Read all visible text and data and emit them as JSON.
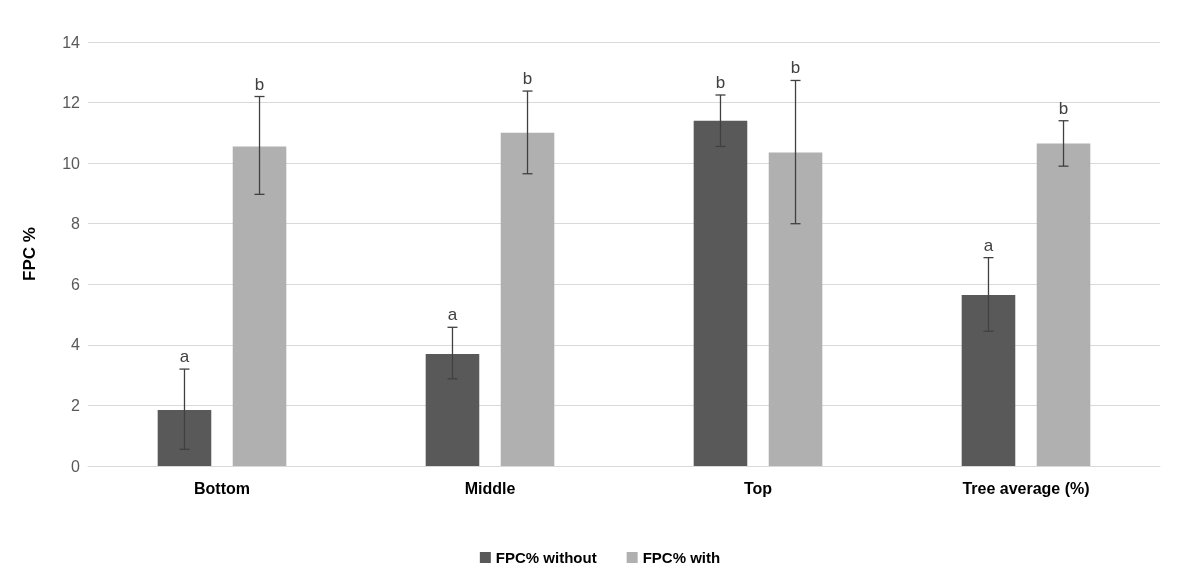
{
  "chart_data": {
    "type": "bar",
    "ylabel": "FPC %",
    "categories": [
      "Bottom",
      "Middle",
      "Top",
      "Tree average (%)"
    ],
    "series": [
      {
        "name": "FPC% without",
        "color": "#595959",
        "values": [
          1.85,
          3.7,
          11.4,
          5.65
        ],
        "errors": [
          [
            0.55,
            3.2
          ],
          [
            2.88,
            4.58
          ],
          [
            10.55,
            12.25
          ],
          [
            4.45,
            6.88
          ]
        ]
      },
      {
        "name": "FPC% with",
        "color": "#b0b0b0",
        "values": [
          10.55,
          11.0,
          10.35,
          10.65
        ],
        "errors": [
          [
            8.97,
            12.2
          ],
          [
            9.65,
            12.38
          ],
          [
            8.0,
            12.73
          ],
          [
            9.9,
            11.4
          ]
        ]
      }
    ],
    "annotations": [
      "a",
      "b",
      "a",
      "b",
      "b",
      "b",
      "a",
      "b"
    ],
    "ylim": [
      0,
      14
    ],
    "yticks": [
      0,
      2,
      4,
      6,
      8,
      10,
      12,
      14
    ],
    "grid": "y",
    "legend": "bottom"
  }
}
